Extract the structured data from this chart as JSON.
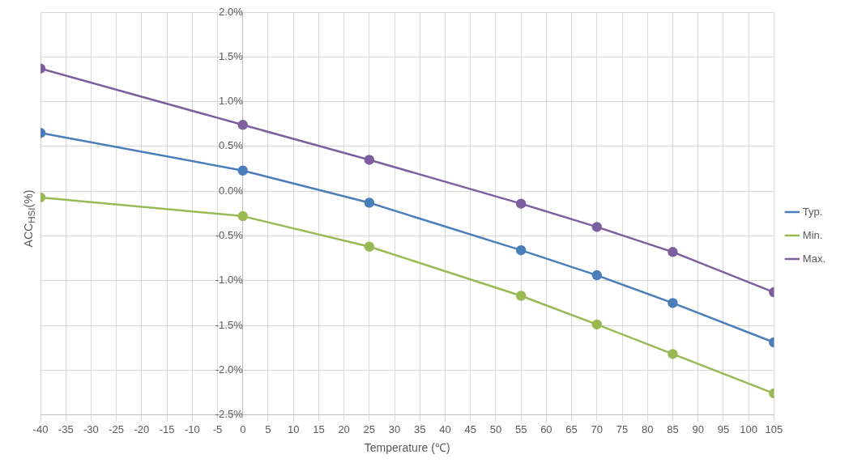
{
  "chart_data": {
    "type": "line",
    "xlabel": "Temperature (℃)",
    "ylabel": "ACC$_{HSI}$(%)",
    "x": [
      -40,
      0,
      25,
      55,
      70,
      85,
      105
    ],
    "series": [
      {
        "name": "Typ.",
        "color": "#4a7ebb",
        "values": [
          0.65,
          0.23,
          -0.13,
          -0.66,
          -0.94,
          -1.25,
          -1.69
        ]
      },
      {
        "name": "Min.",
        "color": "#98b954",
        "values": [
          -0.07,
          -0.28,
          -0.62,
          -1.17,
          -1.49,
          -1.82,
          -2.26
        ]
      },
      {
        "name": "Max.",
        "color": "#7d5fa0",
        "values": [
          1.37,
          0.74,
          0.35,
          -0.14,
          -0.4,
          -0.68,
          -1.13
        ]
      }
    ],
    "xlim": [
      -40,
      105
    ],
    "xticks": [
      -40,
      -35,
      -30,
      -25,
      -20,
      -15,
      -10,
      -5,
      0,
      5,
      10,
      15,
      20,
      25,
      30,
      35,
      40,
      45,
      50,
      55,
      60,
      65,
      70,
      75,
      80,
      85,
      90,
      95,
      100,
      105
    ],
    "ylim": [
      -2.5,
      2.0
    ],
    "yticks": [
      {
        "value": -2.5,
        "label": "-2.5%"
      },
      {
        "value": -2.0,
        "label": "-2.0%"
      },
      {
        "value": -1.5,
        "label": "-1.5%"
      },
      {
        "value": -1.0,
        "label": "-1.0%"
      },
      {
        "value": -0.5,
        "label": "-0.5%"
      },
      {
        "value": 0,
        "label": "0.0%"
      },
      {
        "value": 0.5,
        "label": "0.5%"
      },
      {
        "value": 1.0,
        "label": "1.0%"
      },
      {
        "value": 1.5,
        "label": "1.5%"
      },
      {
        "value": 2.0,
        "label": "2.0%"
      }
    ],
    "grid": true,
    "legend": "right",
    "marker": "circle",
    "line_style": "solid"
  }
}
